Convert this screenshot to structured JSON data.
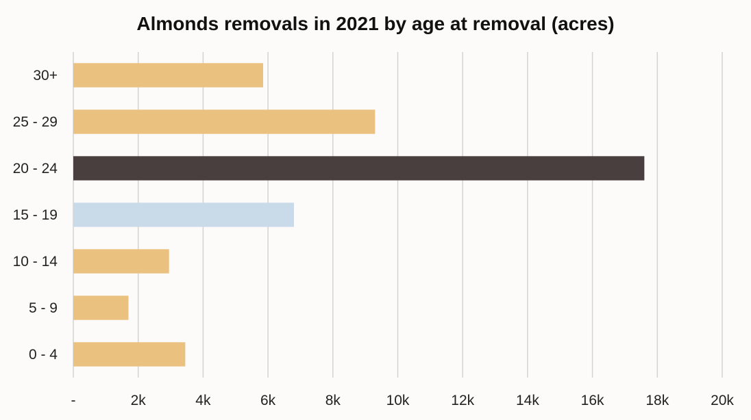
{
  "chart_data": {
    "type": "bar",
    "orientation": "horizontal",
    "title": "Almonds removals in 2021 by age at removal (acres)",
    "xlabel": "",
    "ylabel": "",
    "categories": [
      "30+",
      "25 - 29",
      "20 - 24",
      "15 - 19",
      "10 - 14",
      "5 - 9",
      "0 - 4"
    ],
    "values": [
      5850,
      9300,
      17600,
      6800,
      2950,
      1700,
      3450
    ],
    "xlim": [
      0,
      20000
    ],
    "x_ticks": [
      0,
      2000,
      4000,
      6000,
      8000,
      10000,
      12000,
      14000,
      16000,
      18000,
      20000
    ],
    "x_tick_labels": [
      "-",
      "2k",
      "4k",
      "6k",
      "8k",
      "10k",
      "12k",
      "14k",
      "16k",
      "18k",
      "20k"
    ],
    "grid": "vertical",
    "legend": "none",
    "colors": {
      "default": "#ebc17f",
      "highlight": "#4a3f3f",
      "secondary": "#c9dae8",
      "grid": "#d3d3d3",
      "background": "#fdfbfa"
    },
    "bar_color_keys": [
      "default",
      "default",
      "highlight",
      "secondary",
      "default",
      "default",
      "default"
    ]
  }
}
